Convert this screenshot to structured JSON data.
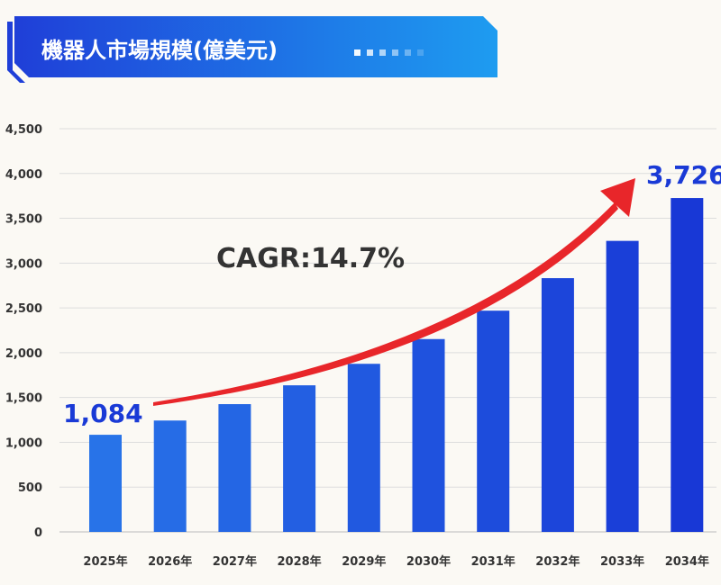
{
  "title": "機器人市場規模(億美元)",
  "colors": {
    "background": "#fbf9f4",
    "banner_start": "#1f3fd8",
    "banner_end": "#1e9cf0",
    "bar_light": "#2873e8",
    "bar_dark": "#1838d6",
    "grid": "#dddddd",
    "arrow": "#e8262a",
    "label": "#1a3ad6",
    "text": "#333333"
  },
  "chart_data": {
    "type": "bar",
    "categories": [
      "2025年",
      "2026年",
      "2027年",
      "2028年",
      "2029年",
      "2030年",
      "2031年",
      "2032年",
      "2033年",
      "2034年"
    ],
    "values": [
      1084,
      1243,
      1426,
      1636,
      1876,
      2152,
      2469,
      2832,
      3248,
      3726
    ],
    "ylim": [
      0,
      4500
    ],
    "yticks": [
      "0",
      "500",
      "1,000",
      "1,500",
      "2,000",
      "2,500",
      "3,000",
      "3,500",
      "4,000",
      "4,500"
    ],
    "grid": true,
    "data_labels": {
      "first": "1,084",
      "last": "3,726"
    },
    "annotation": "CAGR:14.7%"
  }
}
